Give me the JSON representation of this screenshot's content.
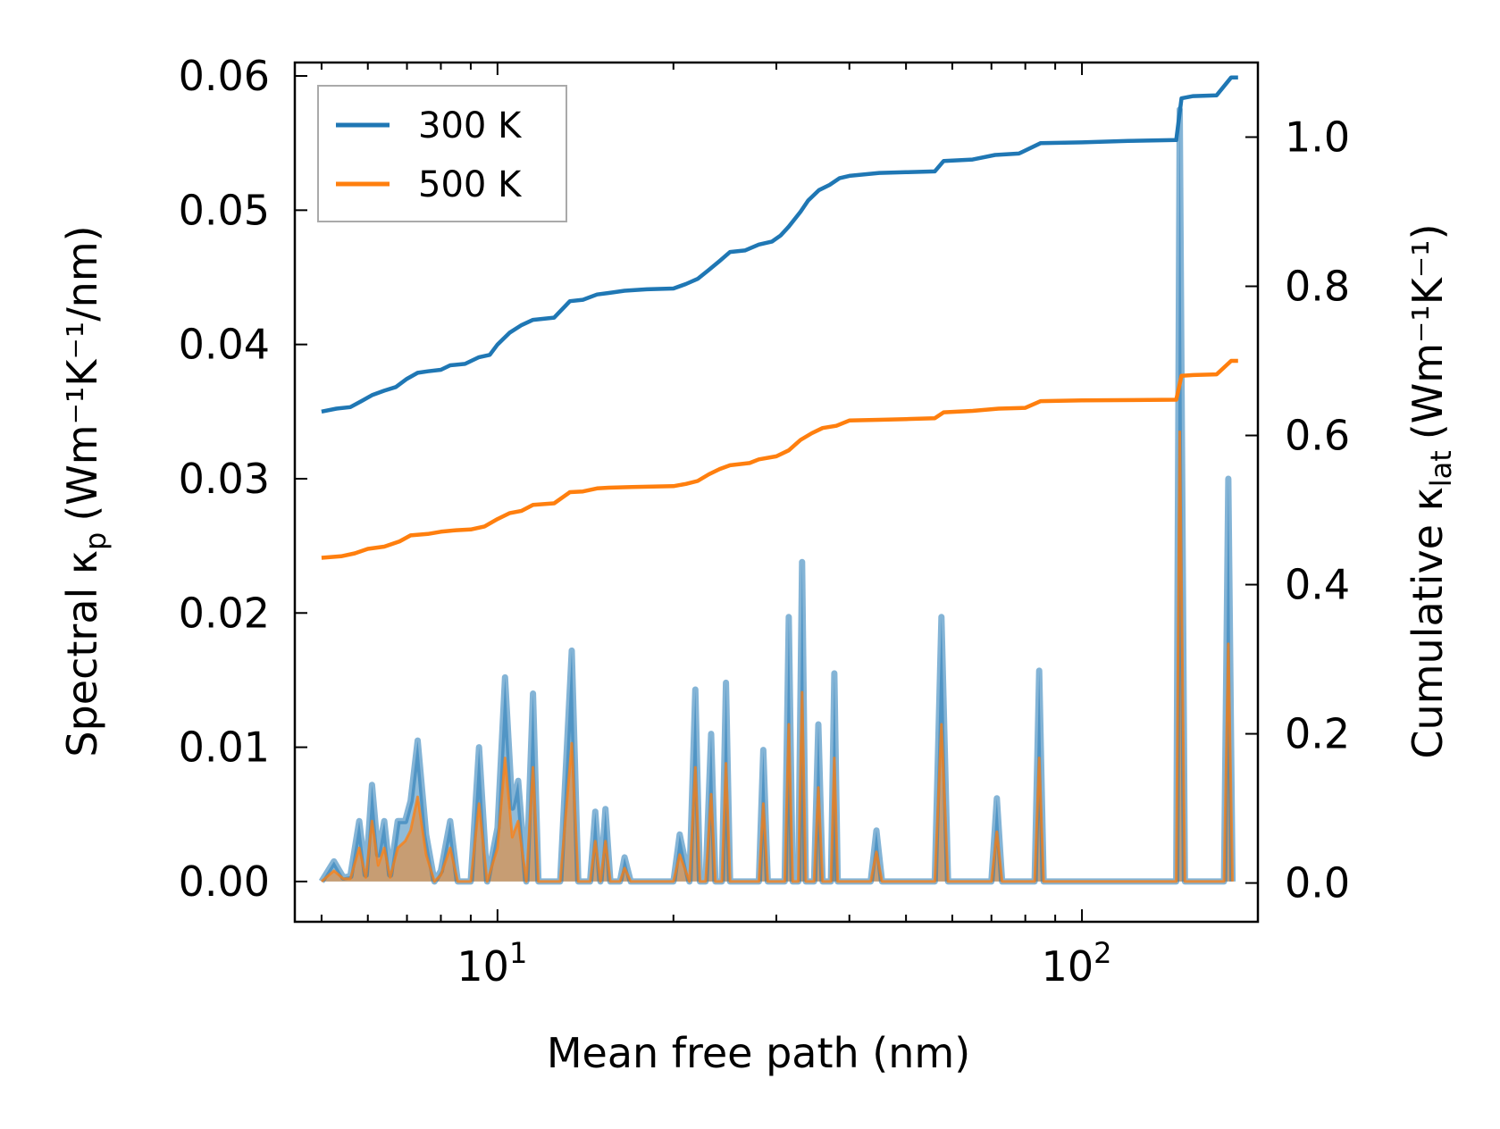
{
  "chart_data": {
    "type": "line",
    "title": "",
    "xlabel": "Mean free path (nm)",
    "ylabel_left": {
      "main": "Spectral κ",
      "sub": "p",
      "unit": "(Wm⁻¹K⁻¹/nm)"
    },
    "ylabel_right": {
      "main": "Cumulative κ",
      "sub": "lat",
      "unit": "(Wm⁻¹K⁻¹)"
    },
    "x_scale": "log",
    "xlim": [
      4.5,
      200
    ],
    "ylim_left": [
      -0.003,
      0.061
    ],
    "ylim_right": [
      -0.052,
      1.1
    ],
    "x_ticks": [
      {
        "value": 10,
        "base": "10",
        "exp": "1"
      },
      {
        "value": 100,
        "base": "10",
        "exp": "2"
      }
    ],
    "y_ticks_left": [
      {
        "value": 0.0,
        "label": "0.00"
      },
      {
        "value": 0.01,
        "label": "0.01"
      },
      {
        "value": 0.02,
        "label": "0.02"
      },
      {
        "value": 0.03,
        "label": "0.03"
      },
      {
        "value": 0.04,
        "label": "0.04"
      },
      {
        "value": 0.05,
        "label": "0.05"
      },
      {
        "value": 0.06,
        "label": "0.06"
      }
    ],
    "y_ticks_right": [
      {
        "value": 0.0,
        "label": "0.0"
      },
      {
        "value": 0.2,
        "label": "0.2"
      },
      {
        "value": 0.4,
        "label": "0.4"
      },
      {
        "value": 0.6,
        "label": "0.6"
      },
      {
        "value": 0.8,
        "label": "0.8"
      },
      {
        "value": 1.0,
        "label": "1.0"
      }
    ],
    "legend": {
      "placement": "top-left",
      "entries": [
        "300 K",
        "500 K"
      ]
    },
    "grid": false,
    "colors": {
      "300K": "#1f77b4",
      "500K": "#ff7f0e",
      "fill": "#b8966e"
    },
    "series": [
      {
        "name": "300 K",
        "axis": "right",
        "kind": "cumulative",
        "points": [
          [
            5.0,
            0.632
          ],
          [
            5.3,
            0.636
          ],
          [
            5.6,
            0.638
          ],
          [
            5.85,
            0.646
          ],
          [
            6.1,
            0.654
          ],
          [
            6.4,
            0.66
          ],
          [
            6.7,
            0.665
          ],
          [
            7.0,
            0.676
          ],
          [
            7.3,
            0.684
          ],
          [
            7.6,
            0.686
          ],
          [
            8.0,
            0.688
          ],
          [
            8.3,
            0.694
          ],
          [
            8.8,
            0.696
          ],
          [
            9.3,
            0.705
          ],
          [
            9.7,
            0.708
          ],
          [
            10.0,
            0.722
          ],
          [
            10.5,
            0.738
          ],
          [
            11.0,
            0.748
          ],
          [
            11.5,
            0.755
          ],
          [
            12.5,
            0.758
          ],
          [
            13.3,
            0.78
          ],
          [
            14.0,
            0.782
          ],
          [
            14.8,
            0.789
          ],
          [
            15.5,
            0.791
          ],
          [
            16.5,
            0.794
          ],
          [
            18.0,
            0.796
          ],
          [
            20.0,
            0.797
          ],
          [
            21.0,
            0.803
          ],
          [
            22.0,
            0.81
          ],
          [
            23.0,
            0.822
          ],
          [
            24.0,
            0.834
          ],
          [
            25.0,
            0.846
          ],
          [
            26.5,
            0.848
          ],
          [
            28.0,
            0.856
          ],
          [
            29.5,
            0.86
          ],
          [
            30.5,
            0.868
          ],
          [
            31.5,
            0.88
          ],
          [
            33.0,
            0.9
          ],
          [
            34.0,
            0.915
          ],
          [
            35.5,
            0.929
          ],
          [
            37.0,
            0.936
          ],
          [
            38.5,
            0.945
          ],
          [
            40.0,
            0.948
          ],
          [
            45.0,
            0.952
          ],
          [
            50.0,
            0.953
          ],
          [
            56.0,
            0.954
          ],
          [
            58.0,
            0.968
          ],
          [
            65.0,
            0.97
          ],
          [
            71.0,
            0.976
          ],
          [
            78.0,
            0.978
          ],
          [
            85.0,
            0.992
          ],
          [
            100.0,
            0.993
          ],
          [
            120.0,
            0.995
          ],
          [
            145.0,
            0.996
          ],
          [
            148.0,
            1.052
          ],
          [
            155.0,
            1.055
          ],
          [
            170.0,
            1.056
          ],
          [
            180.0,
            1.08
          ],
          [
            185.0,
            1.08
          ]
        ]
      },
      {
        "name": "500 K",
        "axis": "right",
        "kind": "cumulative",
        "points": [
          [
            5.0,
            0.436
          ],
          [
            5.4,
            0.438
          ],
          [
            5.7,
            0.442
          ],
          [
            6.0,
            0.448
          ],
          [
            6.4,
            0.451
          ],
          [
            6.8,
            0.458
          ],
          [
            7.1,
            0.466
          ],
          [
            7.6,
            0.468
          ],
          [
            8.0,
            0.471
          ],
          [
            8.5,
            0.473
          ],
          [
            9.0,
            0.474
          ],
          [
            9.5,
            0.478
          ],
          [
            10.0,
            0.488
          ],
          [
            10.5,
            0.496
          ],
          [
            11.0,
            0.499
          ],
          [
            11.5,
            0.507
          ],
          [
            12.5,
            0.509
          ],
          [
            13.3,
            0.524
          ],
          [
            14.0,
            0.525
          ],
          [
            14.8,
            0.529
          ],
          [
            15.5,
            0.53
          ],
          [
            17.0,
            0.531
          ],
          [
            20.0,
            0.532
          ],
          [
            21.0,
            0.535
          ],
          [
            22.0,
            0.539
          ],
          [
            23.0,
            0.548
          ],
          [
            24.0,
            0.555
          ],
          [
            25.0,
            0.56
          ],
          [
            27.0,
            0.563
          ],
          [
            28.0,
            0.568
          ],
          [
            30.0,
            0.572
          ],
          [
            31.5,
            0.58
          ],
          [
            33.0,
            0.594
          ],
          [
            34.5,
            0.603
          ],
          [
            36.0,
            0.61
          ],
          [
            38.0,
            0.613
          ],
          [
            40.0,
            0.62
          ],
          [
            45.0,
            0.621
          ],
          [
            50.0,
            0.622
          ],
          [
            56.0,
            0.623
          ],
          [
            58.0,
            0.631
          ],
          [
            65.0,
            0.633
          ],
          [
            72.0,
            0.636
          ],
          [
            80.0,
            0.637
          ],
          [
            85.0,
            0.646
          ],
          [
            100.0,
            0.647
          ],
          [
            145.0,
            0.648
          ],
          [
            148.0,
            0.68
          ],
          [
            155.0,
            0.681
          ],
          [
            170.0,
            0.682
          ],
          [
            180.0,
            0.7
          ],
          [
            185.0,
            0.7
          ]
        ]
      },
      {
        "name": "300 K spectral",
        "axis": "left",
        "kind": "spectral",
        "points": [
          [
            5.0,
            0.0
          ],
          [
            5.25,
            0.0015
          ],
          [
            5.45,
            0.0003
          ],
          [
            5.6,
            0.0004
          ],
          [
            5.8,
            0.0045
          ],
          [
            5.95,
            0.0005
          ],
          [
            6.1,
            0.0072
          ],
          [
            6.25,
            0.002
          ],
          [
            6.4,
            0.0045
          ],
          [
            6.55,
            0.0005
          ],
          [
            6.75,
            0.0045
          ],
          [
            6.95,
            0.0045
          ],
          [
            7.1,
            0.006
          ],
          [
            7.3,
            0.0105
          ],
          [
            7.55,
            0.0035
          ],
          [
            7.8,
            0.0
          ],
          [
            8.0,
            0.0008
          ],
          [
            8.3,
            0.0045
          ],
          [
            8.55,
            0.0
          ],
          [
            9.0,
            0.0
          ],
          [
            9.3,
            0.01
          ],
          [
            9.6,
            0.0
          ],
          [
            10.0,
            0.004
          ],
          [
            10.3,
            0.0152
          ],
          [
            10.6,
            0.0055
          ],
          [
            10.85,
            0.0075
          ],
          [
            11.2,
            0.0
          ],
          [
            11.5,
            0.014
          ],
          [
            11.75,
            0.0
          ],
          [
            12.8,
            0.0
          ],
          [
            13.4,
            0.0172
          ],
          [
            13.75,
            0.0
          ],
          [
            14.4,
            0.0
          ],
          [
            14.7,
            0.0052
          ],
          [
            15.0,
            0.0
          ],
          [
            15.3,
            0.0054
          ],
          [
            15.6,
            0.0
          ],
          [
            16.2,
            0.0
          ],
          [
            16.5,
            0.0018
          ],
          [
            16.9,
            0.0
          ],
          [
            20.0,
            0.0
          ],
          [
            20.5,
            0.0035
          ],
          [
            21.3,
            0.0
          ],
          [
            21.8,
            0.0143
          ],
          [
            22.2,
            0.0
          ],
          [
            22.7,
            0.0
          ],
          [
            23.2,
            0.011
          ],
          [
            23.6,
            0.0
          ],
          [
            24.2,
            0.0
          ],
          [
            24.6,
            0.0148
          ],
          [
            25.0,
            0.0
          ],
          [
            28.0,
            0.0
          ],
          [
            28.5,
            0.0098
          ],
          [
            29.0,
            0.0
          ],
          [
            31.0,
            0.0
          ],
          [
            31.5,
            0.0197
          ],
          [
            32.0,
            0.0
          ],
          [
            32.7,
            0.0
          ],
          [
            33.2,
            0.0238
          ],
          [
            33.7,
            0.0
          ],
          [
            34.8,
            0.0
          ],
          [
            35.4,
            0.0117
          ],
          [
            36.0,
            0.0
          ],
          [
            37.2,
            0.0
          ],
          [
            37.7,
            0.0155
          ],
          [
            38.2,
            0.0
          ],
          [
            43.5,
            0.0
          ],
          [
            44.5,
            0.0038
          ],
          [
            45.5,
            0.0
          ],
          [
            56.0,
            0.0
          ],
          [
            57.5,
            0.0197
          ],
          [
            59.0,
            0.0
          ],
          [
            70.0,
            0.0
          ],
          [
            71.5,
            0.0062
          ],
          [
            73.0,
            0.0
          ],
          [
            83.0,
            0.0
          ],
          [
            84.5,
            0.0157
          ],
          [
            86.0,
            0.0
          ],
          [
            145.0,
            0.0
          ],
          [
            147.0,
            0.0575
          ],
          [
            150.0,
            0.0
          ],
          [
            175.0,
            0.0
          ],
          [
            178.0,
            0.03
          ],
          [
            181.0,
            0.0
          ]
        ]
      },
      {
        "name": "500 K spectral",
        "axis": "left",
        "kind": "spectral",
        "points": [
          [
            5.0,
            0.0
          ],
          [
            5.25,
            0.0008
          ],
          [
            5.45,
            0.0002
          ],
          [
            5.6,
            0.0002
          ],
          [
            5.8,
            0.0025
          ],
          [
            5.95,
            0.0003
          ],
          [
            6.1,
            0.0045
          ],
          [
            6.25,
            0.0012
          ],
          [
            6.4,
            0.0025
          ],
          [
            6.55,
            0.0003
          ],
          [
            6.75,
            0.0025
          ],
          [
            6.95,
            0.003
          ],
          [
            7.1,
            0.0038
          ],
          [
            7.3,
            0.0063
          ],
          [
            7.55,
            0.002
          ],
          [
            7.8,
            0.0
          ],
          [
            8.0,
            0.0005
          ],
          [
            8.3,
            0.0025
          ],
          [
            8.55,
            0.0
          ],
          [
            9.0,
            0.0
          ],
          [
            9.3,
            0.0058
          ],
          [
            9.6,
            0.0
          ],
          [
            10.0,
            0.0025
          ],
          [
            10.3,
            0.0092
          ],
          [
            10.6,
            0.0033
          ],
          [
            10.85,
            0.0045
          ],
          [
            11.2,
            0.0
          ],
          [
            11.5,
            0.0085
          ],
          [
            11.75,
            0.0
          ],
          [
            12.8,
            0.0
          ],
          [
            13.4,
            0.0103
          ],
          [
            13.75,
            0.0
          ],
          [
            14.4,
            0.0
          ],
          [
            14.7,
            0.003
          ],
          [
            15.0,
            0.0
          ],
          [
            15.3,
            0.003
          ],
          [
            15.6,
            0.0
          ],
          [
            16.2,
            0.0
          ],
          [
            16.5,
            0.001
          ],
          [
            16.9,
            0.0
          ],
          [
            20.0,
            0.0
          ],
          [
            20.5,
            0.002
          ],
          [
            21.3,
            0.0
          ],
          [
            21.8,
            0.0085
          ],
          [
            22.2,
            0.0
          ],
          [
            22.7,
            0.0
          ],
          [
            23.2,
            0.0065
          ],
          [
            23.6,
            0.0
          ],
          [
            24.2,
            0.0
          ],
          [
            24.6,
            0.0088
          ],
          [
            25.0,
            0.0
          ],
          [
            28.0,
            0.0
          ],
          [
            28.5,
            0.0058
          ],
          [
            29.0,
            0.0
          ],
          [
            31.0,
            0.0
          ],
          [
            31.5,
            0.0117
          ],
          [
            32.0,
            0.0
          ],
          [
            32.7,
            0.0
          ],
          [
            33.2,
            0.0141
          ],
          [
            33.7,
            0.0
          ],
          [
            34.8,
            0.0
          ],
          [
            35.4,
            0.007
          ],
          [
            36.0,
            0.0
          ],
          [
            37.2,
            0.0
          ],
          [
            37.7,
            0.0092
          ],
          [
            38.2,
            0.0
          ],
          [
            43.5,
            0.0
          ],
          [
            44.5,
            0.0022
          ],
          [
            45.5,
            0.0
          ],
          [
            56.0,
            0.0
          ],
          [
            57.5,
            0.0117
          ],
          [
            59.0,
            0.0
          ],
          [
            70.0,
            0.0
          ],
          [
            71.5,
            0.0037
          ],
          [
            73.0,
            0.0
          ],
          [
            83.0,
            0.0
          ],
          [
            84.5,
            0.0092
          ],
          [
            86.0,
            0.0
          ],
          [
            145.0,
            0.0
          ],
          [
            147.0,
            0.0335
          ],
          [
            150.0,
            0.0
          ],
          [
            175.0,
            0.0
          ],
          [
            178.0,
            0.0177
          ],
          [
            181.0,
            0.0
          ]
        ]
      }
    ]
  }
}
